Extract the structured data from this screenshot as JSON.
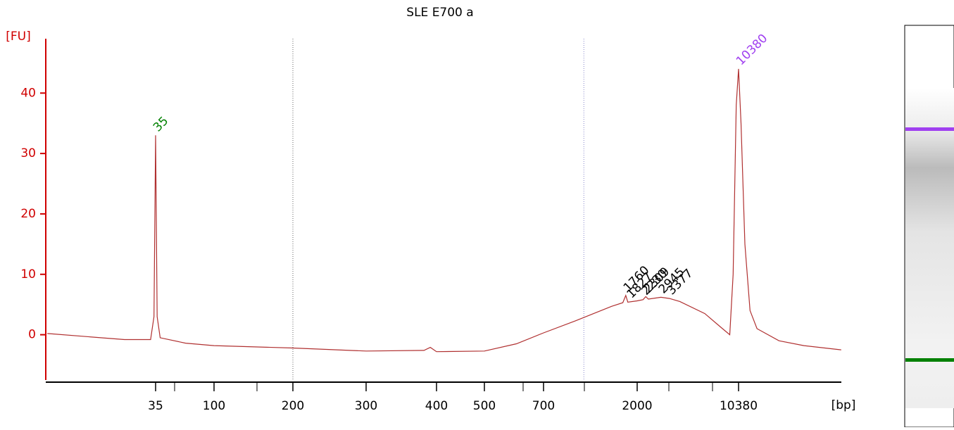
{
  "chart_data": {
    "type": "line",
    "title": "SLE E700 a",
    "y_label": "[FU]",
    "x_label": "[bp]",
    "x": [
      5,
      10,
      20,
      32,
      34,
      35,
      36,
      38,
      60,
      100,
      200,
      300,
      380,
      390,
      400,
      500,
      600,
      700,
      1000,
      1500,
      1702,
      1760,
      1800,
      2000,
      2200,
      2300,
      2400,
      2945,
      3377,
      4000,
      6000,
      8000,
      9000,
      9500,
      10000,
      10380,
      10800,
      11500,
      12500,
      14000,
      20000,
      30000,
      55000
    ],
    "series": [
      {
        "name": "SLE E700 a",
        "color": "#b03030",
        "values": [
          0.2,
          -0.3,
          -0.8,
          -0.8,
          3,
          33,
          3,
          -0.5,
          -1.4,
          -1.8,
          -2.2,
          -2.7,
          -2.6,
          -2.1,
          -2.8,
          -2.7,
          -1.5,
          0.3,
          2.3,
          4.7,
          5.3,
          6.5,
          5.4,
          5.6,
          5.8,
          6.3,
          5.9,
          6.2,
          6.0,
          5.5,
          3.5,
          1.0,
          0,
          10,
          38,
          44,
          35,
          15,
          4,
          1,
          -1,
          -1.8,
          -2.5
        ]
      }
    ],
    "xticks": [
      35,
      100,
      200,
      300,
      400,
      500,
      700,
      2000,
      10380
    ],
    "ylim": [
      -7.5,
      49
    ],
    "yticks": [
      0,
      10,
      20,
      30,
      40
    ],
    "axis_color": "#d00000",
    "region_lines": [
      200,
      1100
    ],
    "peaks": [
      {
        "bp": 35,
        "color": "#008000"
      },
      {
        "bp": 1760,
        "color": "#000000"
      },
      {
        "bp": 1827,
        "color": "#000000"
      },
      {
        "bp": 2230,
        "color": "#000000"
      },
      {
        "bp": 2309,
        "color": "#000000"
      },
      {
        "bp": 2945,
        "color": "#000000"
      },
      {
        "bp": 3377,
        "color": "#000000"
      },
      {
        "bp": 10380,
        "color": "#a040f0"
      }
    ]
  }
}
